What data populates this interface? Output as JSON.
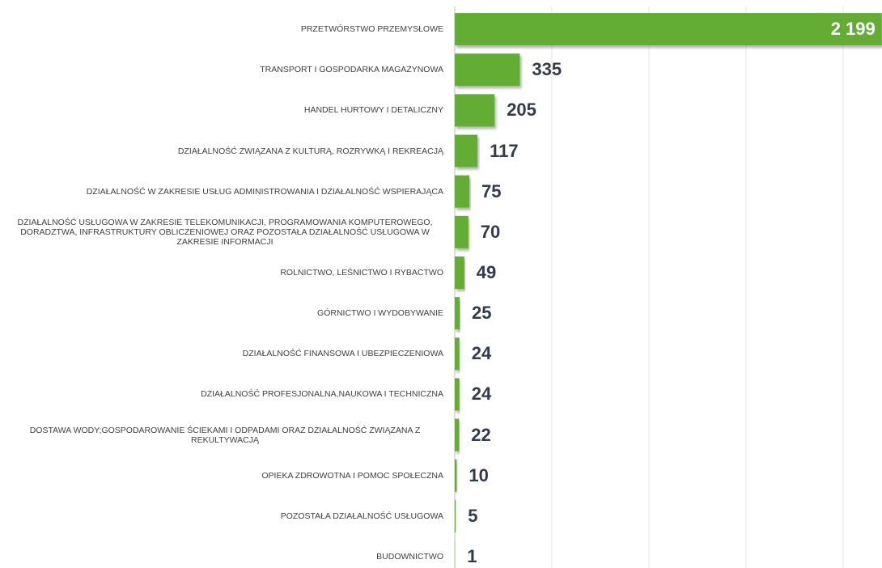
{
  "chart_data": {
    "type": "bar",
    "orientation": "horizontal",
    "categories": [
      "PRZETWÓRSTWO PRZEMYSŁOWE",
      "TRANSPORT I GOSPODARKA MAGAZYNOWA",
      "HANDEL HURTOWY I DETALICZNY",
      "DZIAŁALNOŚĆ ZWIĄZANA Z KULTURĄ, ROZRYWKĄ I REKREACJĄ",
      "DZIAŁALNOŚĆ W ZAKRESIE USŁUG ADMINISTROWANIA I DZIAŁALNOŚĆ WSPIERAJĄCA",
      "DZIAŁALNOŚĆ USŁUGOWA W ZAKRESIE TELEKOMUNIKACJI, PROGRAMOWANIA KOMPUTEROWEGO, DORADZTWA, INFRASTRUKTURY OBLICZENIOWEJ ORAZ POZOSTAŁA DZIAŁALNOŚĆ USŁUGOWA W ZAKRESIE INFORMACJI",
      "ROLNICTWO, LEŚNICTWO I RYBACTWO",
      "GÓRNICTWO I WYDOBYWANIE",
      "DZIAŁALNOŚĆ FINANSOWA I UBEZPIECZENIOWA",
      "DZIAŁALNOŚĆ PROFESJONALNA,NAUKOWA I TECHNICZNA",
      "DOSTAWA WODY;GOSPODAROWANIE ŚCIEKAMI I ODPADAMI ORAZ DZIAŁALNOŚĆ ZWIĄZANA Z REKULTYWACJĄ",
      "OPIEKA ZDROWOTNA I POMOC SPOŁECZNA",
      "POZOSTAŁA DZIAŁALNOŚĆ USŁUGOWA",
      "BUDOWNICTWO"
    ],
    "values": [
      2199,
      335,
      205,
      117,
      75,
      70,
      49,
      25,
      24,
      24,
      22,
      10,
      5,
      1
    ],
    "value_labels": [
      "2 199",
      "335",
      "205",
      "117",
      "75",
      "70",
      "49",
      "25",
      "24",
      "24",
      "22",
      "10",
      "5",
      "1"
    ],
    "color": "#64ad35",
    "xlim": [
      0,
      2200
    ],
    "xticks": [
      0,
      500,
      1000,
      1500,
      2000
    ],
    "grid": true
  }
}
